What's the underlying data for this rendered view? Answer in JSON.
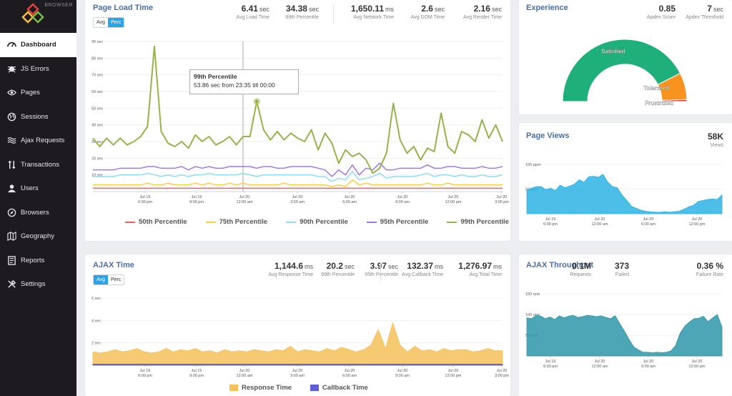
{
  "brand": {
    "label": "BROWSER"
  },
  "nav": [
    {
      "label": "Dashboard",
      "icon": "gauge-icon",
      "active": true
    },
    {
      "label": "JS Errors",
      "icon": "bug-icon"
    },
    {
      "label": "Pages",
      "icon": "eye-icon"
    },
    {
      "label": "Sessions",
      "icon": "globe-icon"
    },
    {
      "label": "Ajax Requests",
      "icon": "waves-icon"
    },
    {
      "label": "Transactions",
      "icon": "transactions-icon"
    },
    {
      "label": "Users",
      "icon": "user-icon"
    },
    {
      "label": "Browsers",
      "icon": "compass-icon"
    },
    {
      "label": "Geography",
      "icon": "map-icon"
    },
    {
      "label": "Reports",
      "icon": "list-icon"
    },
    {
      "label": "Settings",
      "icon": "tools-icon"
    }
  ],
  "page_load": {
    "title": "Page Load Time",
    "toggle": [
      "Avg",
      "Perc"
    ],
    "stats": [
      {
        "value": "6.41",
        "unit": "sec",
        "label": "Avg Load Time"
      },
      {
        "value": "34.38",
        "unit": "sec",
        "label": "99th Percentile"
      },
      {
        "value": "1,650.11",
        "unit": "ms",
        "label": "Avg Network Time"
      },
      {
        "value": "2.6",
        "unit": "sec",
        "label": "Avg DOM Time"
      },
      {
        "value": "2.16",
        "unit": "sec",
        "label": "Avg Render Time"
      }
    ],
    "tooltip": {
      "title": "99th Percentile",
      "text": "53.86 sec from 23:35 till 00:00"
    }
  },
  "ajax_time": {
    "title": "AJAX Time",
    "toggle": [
      "Avg",
      "Perc"
    ],
    "stats": [
      {
        "value": "1,144.6",
        "unit": "ms",
        "label": "Avg Response Time"
      },
      {
        "value": "20.2",
        "unit": "sec",
        "label": "99th Percentile"
      },
      {
        "value": "3.97",
        "unit": "sec",
        "label": "95th Percentile"
      },
      {
        "value": "132.37",
        "unit": "ms",
        "label": "Avg Callback Time"
      },
      {
        "value": "1,276.97",
        "unit": "ms",
        "label": "Avg Total Time"
      }
    ]
  },
  "experience": {
    "title": "Experience",
    "stats": [
      {
        "value": "0.85",
        "unit": "",
        "label": "Apdex Score"
      },
      {
        "value": "7",
        "unit": "sec",
        "label": "Apdex Threshold"
      }
    ],
    "segments": [
      {
        "label": "Satisfied",
        "value": 0.85,
        "color": "#1eaf7a"
      },
      {
        "label": "Tolerated",
        "value": 0.14,
        "color": "#f7931e"
      },
      {
        "label": "Frustrated",
        "value": 0.01,
        "color": "#e63946"
      }
    ]
  },
  "page_views": {
    "title": "Page Views",
    "stats": [
      {
        "value": "58K",
        "unit": "",
        "label": "Views"
      }
    ]
  },
  "ajax_throughput": {
    "title": "AJAX Throughput",
    "stats": [
      {
        "value": "0.1M",
        "unit": "",
        "label": "Requests"
      },
      {
        "value": "373",
        "unit": "",
        "label": "Failed"
      },
      {
        "value": "0.36 %",
        "unit": "",
        "label": "Failure Rate"
      }
    ]
  },
  "chart_data": [
    {
      "type": "line",
      "id": "page-load",
      "yticks": [
        "90 sec",
        "80 sec",
        "70 sec",
        "60 sec",
        "50 sec",
        "40 sec",
        "30 sec",
        "20 sec",
        "10 sec"
      ],
      "ylim": [
        0,
        90
      ],
      "xticks": [
        [
          "Jul 19",
          "6:00 pm"
        ],
        [
          "Jul 19",
          "9:00 pm"
        ],
        [
          "Jul 20",
          "12:00 am"
        ],
        [
          "Jul 20",
          "3:00 am"
        ],
        [
          "Jul 20",
          "6:00 am"
        ],
        [
          "Jul 20",
          "9:00 am"
        ],
        [
          "Jul 20",
          "12:00 pm"
        ],
        [
          "Jul 20",
          "3:00 pm"
        ]
      ],
      "series": [
        {
          "name": "50th Percentile",
          "color": "#f25c5c",
          "values": [
            2,
            2,
            2,
            2,
            2,
            2,
            2,
            2,
            2,
            2,
            2,
            2,
            2,
            2,
            2,
            2,
            2,
            2,
            2,
            2,
            2,
            2,
            2,
            2,
            2,
            2,
            2,
            2,
            2,
            2,
            2,
            2,
            2,
            2,
            2,
            2,
            2,
            2,
            2,
            2,
            2,
            2,
            2,
            2,
            2,
            2,
            2,
            2,
            2,
            2,
            2,
            2,
            2,
            2,
            2,
            2,
            2,
            2,
            2,
            2,
            2
          ]
        },
        {
          "name": "75th Percentile",
          "color": "#f7cf3a",
          "values": [
            4,
            4,
            4,
            4,
            4,
            4,
            4,
            4,
            5,
            4,
            4,
            5,
            4,
            4,
            4,
            5,
            4,
            5,
            4,
            4,
            5,
            4,
            5,
            4,
            4,
            4,
            4,
            4,
            5,
            4,
            4,
            4,
            4,
            4,
            4,
            3,
            4,
            3,
            7,
            4,
            5,
            4,
            4,
            4,
            4,
            4,
            4,
            4,
            4,
            5,
            4,
            4,
            5,
            4,
            4,
            4,
            4,
            4,
            4,
            4,
            4
          ]
        },
        {
          "name": "90th Percentile",
          "color": "#8fdcf2",
          "values": [
            9,
            9,
            9,
            9,
            10,
            10,
            10,
            10,
            11,
            10,
            9,
            10,
            9,
            10,
            9,
            10,
            10,
            11,
            10,
            10,
            10,
            10,
            11,
            10,
            9,
            10,
            10,
            10,
            10,
            10,
            10,
            10,
            10,
            9,
            9,
            6,
            8,
            7,
            12,
            7,
            8,
            9,
            11,
            8,
            9,
            9,
            9,
            9,
            10,
            11,
            9,
            10,
            10,
            9,
            10,
            9,
            9,
            10,
            9,
            9,
            10
          ]
        },
        {
          "name": "95th Percentile",
          "color": "#a078e8",
          "values": [
            13,
            13,
            13,
            13,
            14,
            14,
            14,
            14,
            15,
            15,
            14,
            14,
            14,
            15,
            13,
            15,
            14,
            15,
            14,
            14,
            15,
            15,
            15,
            15,
            14,
            15,
            15,
            14,
            14,
            15,
            15,
            15,
            15,
            14,
            13,
            9,
            13,
            10,
            16,
            10,
            14,
            13,
            17,
            13,
            13,
            14,
            14,
            14,
            14,
            16,
            14,
            14,
            15,
            15,
            14,
            14,
            14,
            15,
            14,
            14,
            15
          ]
        },
        {
          "name": "99th Percentile",
          "color": "#97b24a",
          "values": [
            32,
            27,
            32,
            28,
            32,
            28,
            30,
            33,
            39,
            87,
            36,
            29,
            27,
            30,
            26,
            34,
            30,
            33,
            28,
            30,
            33,
            28,
            33,
            33,
            54,
            37,
            31,
            36,
            31,
            35,
            32,
            30,
            37,
            25,
            35,
            29,
            17,
            25,
            21,
            23,
            19,
            11,
            14,
            23,
            53,
            31,
            23,
            27,
            19,
            26,
            24,
            47,
            27,
            23,
            36,
            34,
            30,
            43,
            32,
            40,
            30
          ]
        }
      ]
    },
    {
      "type": "area",
      "id": "page-views",
      "yticks": [
        "100 ppm",
        "50 ppm"
      ],
      "ylim": [
        0,
        100
      ],
      "xticks": [
        [
          "Jul 19",
          "6:00 pm"
        ],
        [
          "Jul 20",
          "12:00 am"
        ],
        [
          "Jul 20",
          "6:00 am"
        ],
        [
          "Jul 20",
          "12:00 pm"
        ]
      ],
      "series": [
        {
          "name": "",
          "color": "#2db3e3",
          "values": [
            48,
            52,
            55,
            55,
            49,
            52,
            47,
            58,
            53,
            56,
            60,
            69,
            64,
            75,
            76,
            74,
            80,
            64,
            55,
            53,
            38,
            27,
            15,
            11,
            7,
            5,
            4,
            3,
            3,
            4,
            3,
            4,
            5,
            9,
            14,
            17,
            25,
            27,
            29,
            30,
            29,
            38
          ]
        }
      ]
    },
    {
      "type": "area",
      "id": "ajax-time",
      "yticks": [
        "6 sec",
        "4 sec",
        "2 sec"
      ],
      "ylim": [
        0,
        6
      ],
      "xticks": [
        [
          "Jul 19",
          "6:00 pm"
        ],
        [
          "Jul 19",
          "9:00 pm"
        ],
        [
          "Jul 20",
          "12:00 am"
        ],
        [
          "Jul 20",
          "3:00 am"
        ],
        [
          "Jul 20",
          "6:00 am"
        ],
        [
          "Jul 20",
          "9:00 am"
        ],
        [
          "Jul 20",
          "12:00 pm"
        ],
        [
          "Jul 20",
          "3:00 pm"
        ]
      ],
      "series": [
        {
          "name": "Response Time",
          "color": "#f4c15b",
          "values": [
            1.2,
            1.1,
            1.2,
            1.4,
            1.2,
            1.3,
            1.5,
            1.2,
            1.1,
            1.2,
            1.5,
            1.2,
            1.4,
            1.3,
            1.5,
            1.2,
            1.3,
            1.1,
            1.4,
            1.2,
            1.3,
            1.2,
            1.4,
            1.3,
            1.2,
            1.4,
            1.3,
            1.7,
            1.2,
            1.4,
            1.3,
            1.2,
            1.5,
            1.3,
            1.6,
            1.4,
            1.2,
            1.4,
            1.8,
            3.2,
            1.5,
            3.8,
            1.8,
            1.2,
            1.7,
            1.3,
            1.4,
            1.2,
            1.5,
            1.3,
            1.4,
            1.4,
            1.2,
            1.3,
            1.5,
            1.3,
            1.3
          ]
        },
        {
          "name": "Callback Time",
          "color": "#5c5fd8",
          "values": [
            0.1,
            0.1,
            0.1,
            0.1,
            0.1,
            0.1,
            0.1,
            0.1,
            0.1,
            0.1,
            0.1,
            0.1,
            0.1,
            0.1,
            0.1,
            0.1,
            0.1,
            0.1,
            0.1,
            0.1,
            0.1,
            0.1,
            0.1,
            0.1,
            0.1,
            0.1,
            0.1,
            0.1,
            0.1,
            0.1,
            0.1,
            0.1,
            0.1,
            0.1,
            0.1,
            0.1,
            0.1,
            0.1,
            0.1,
            0.1,
            0.1,
            0.1,
            0.1,
            0.1,
            0.1,
            0.1,
            0.1,
            0.1,
            0.1,
            0.1,
            0.1,
            0.1,
            0.1,
            0.1,
            0.1,
            0.1,
            0.1
          ]
        }
      ]
    },
    {
      "type": "area",
      "id": "ajax-throughput",
      "yticks": [
        "150 rpm",
        "100 rpm",
        "50 rpm"
      ],
      "ylim": [
        0,
        150
      ],
      "xticks": [
        [
          "Jul 19",
          "6:00 pm"
        ],
        [
          "Jul 20",
          "12:00 am"
        ],
        [
          "Jul 20",
          "6:00 am"
        ],
        [
          "Jul 20",
          "12:00 pm"
        ]
      ],
      "series": [
        {
          "name": "",
          "color": "#2e97a8",
          "values": [
            92,
            90,
            98,
            96,
            90,
            94,
            88,
            97,
            92,
            96,
            98,
            93,
            95,
            98,
            97,
            95,
            97,
            93,
            90,
            97,
            78,
            60,
            40,
            22,
            15,
            9,
            9,
            8,
            9,
            8,
            9,
            12,
            25,
            55,
            72,
            82,
            90,
            91,
            96,
            83,
            92,
            100,
            70
          ]
        }
      ]
    }
  ]
}
